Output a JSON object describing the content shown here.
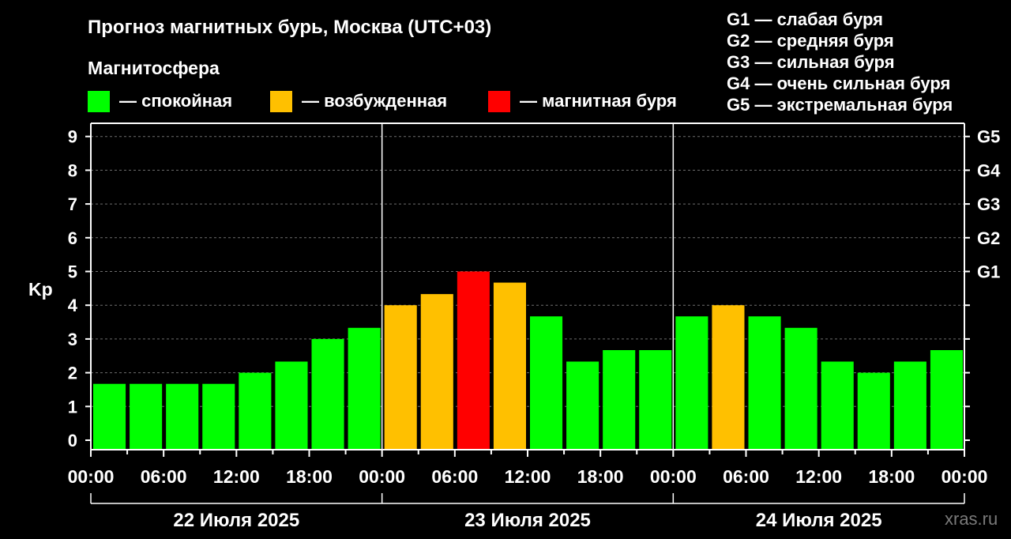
{
  "title": "Прогноз магнитных бурь, Москва (UTC+03)",
  "legend": {
    "title": "Магнитосфера",
    "items": [
      {
        "label": "— спокойная",
        "color": "#00ff00"
      },
      {
        "label": "— возбужденная",
        "color": "#ffc000"
      },
      {
        "label": "— магнитная буря",
        "color": "#ff0000"
      }
    ]
  },
  "storm_legend": [
    "G1 — слабая буря",
    "G2 — средняя буря",
    "G3 — сильная буря",
    "G4 — очень сильная буря",
    "G5 — экстремальная буря"
  ],
  "watermark": "xras.ru",
  "chart_data": {
    "type": "bar",
    "title": "Прогноз магнитных бурь, Москва (UTC+03)",
    "ylabel": "Kp",
    "ylim": [
      0,
      9
    ],
    "yticks": [
      "0",
      "1",
      "2",
      "3",
      "4",
      "5",
      "6",
      "7",
      "8",
      "9"
    ],
    "right_ticks": [
      {
        "value": 5,
        "label": "G1"
      },
      {
        "value": 6,
        "label": "G2"
      },
      {
        "value": 7,
        "label": "G3"
      },
      {
        "value": 8,
        "label": "G4"
      },
      {
        "value": 9,
        "label": "G5"
      }
    ],
    "xtick_labels": [
      "00:00",
      "06:00",
      "12:00",
      "18:00",
      "00:00",
      "06:00",
      "12:00",
      "18:00",
      "00:00",
      "06:00",
      "12:00",
      "18:00",
      "00:00"
    ],
    "days": [
      "22 Июля 2025",
      "23 Июля 2025",
      "24 Июля 2025"
    ],
    "bar_interval_hours": 3,
    "grid": true,
    "colors": {
      "quiet": "#00ff00",
      "active": "#ffc000",
      "storm": "#ff0000"
    },
    "values": [
      1.67,
      1.67,
      1.67,
      1.67,
      2.0,
      2.33,
      3.0,
      3.33,
      4.0,
      4.33,
      5.0,
      4.67,
      3.67,
      2.33,
      2.67,
      2.67,
      3.67,
      4.0,
      3.67,
      3.33,
      2.33,
      2.0,
      2.33,
      2.67
    ],
    "levels": [
      "quiet",
      "quiet",
      "quiet",
      "quiet",
      "quiet",
      "quiet",
      "quiet",
      "quiet",
      "active",
      "active",
      "storm",
      "active",
      "quiet",
      "quiet",
      "quiet",
      "quiet",
      "quiet",
      "active",
      "quiet",
      "quiet",
      "quiet",
      "quiet",
      "quiet",
      "quiet"
    ]
  }
}
